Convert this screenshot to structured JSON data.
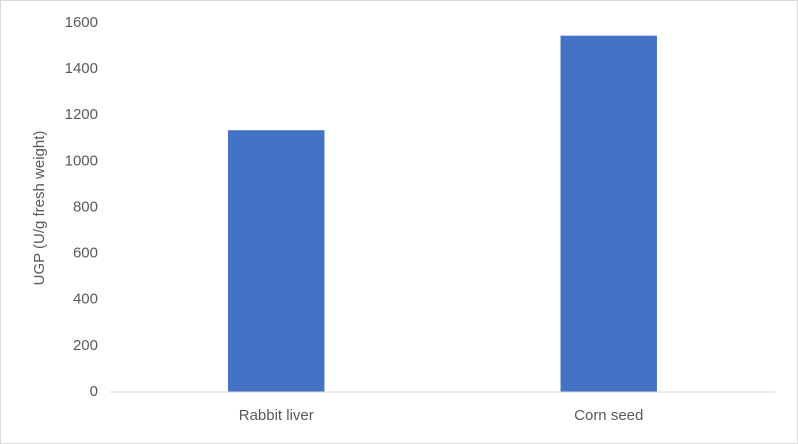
{
  "chart_data": {
    "type": "bar",
    "y_label": "UGP (U/g fresh weight)",
    "categories": [
      "Rabbit liver",
      "Corn seed"
    ],
    "values": [
      1135,
      1545
    ],
    "color": "#4472c4",
    "ylim": [
      0,
      1600
    ],
    "yticks": [
      0,
      200,
      400,
      600,
      800,
      1000,
      1200,
      1400,
      1600
    ],
    "grid": false
  }
}
